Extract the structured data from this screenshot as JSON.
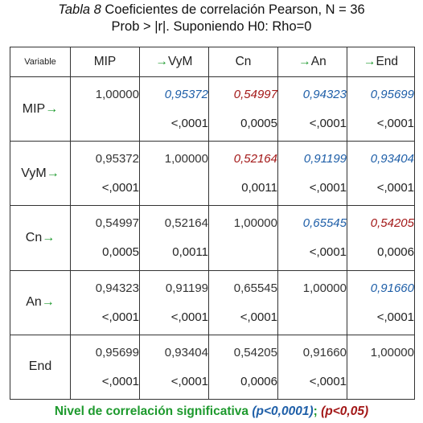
{
  "caption": {
    "table_word": "Tabla 8",
    "line1": "Coeficientes de correlación Pearson, N = 36",
    "line2": "Prob > |r|. Suponiendo H0: Rho=0"
  },
  "arrow": "→",
  "header": {
    "variable": "Variable",
    "cols": [
      {
        "label": "MIP",
        "arrow": false
      },
      {
        "label": "VyM",
        "arrow": true
      },
      {
        "label": "Cn",
        "arrow": false
      },
      {
        "label": "An",
        "arrow": true
      },
      {
        "label": "End",
        "arrow": true
      }
    ]
  },
  "rows": [
    {
      "label": "MIP",
      "arrow": true,
      "cells": [
        {
          "r": "1,00000",
          "p": "",
          "style": "norm"
        },
        {
          "r": "0,95372",
          "p": "<,0001",
          "style": "blue"
        },
        {
          "r": "0,54997",
          "p": "0,0005",
          "style": "red"
        },
        {
          "r": "0,94323",
          "p": "<,0001",
          "style": "blue"
        },
        {
          "r": "0,95699",
          "p": "<,0001",
          "style": "blue"
        }
      ]
    },
    {
      "label": "VyM",
      "arrow": true,
      "cells": [
        {
          "r": "0,95372",
          "p": "<,0001",
          "style": "norm"
        },
        {
          "r": "1,00000",
          "p": "",
          "style": "norm"
        },
        {
          "r": "0,52164",
          "p": "0,0011",
          "style": "red"
        },
        {
          "r": "0,91199",
          "p": "<,0001",
          "style": "blue"
        },
        {
          "r": "0,93404",
          "p": "<,0001",
          "style": "blue"
        }
      ]
    },
    {
      "label": "Cn",
      "arrow": true,
      "cells": [
        {
          "r": "0,54997",
          "p": "0,0005",
          "style": "norm"
        },
        {
          "r": "0,52164",
          "p": "0,0011",
          "style": "norm"
        },
        {
          "r": "1,00000",
          "p": "",
          "style": "norm"
        },
        {
          "r": "0,65545",
          "p": "<,0001",
          "style": "blue"
        },
        {
          "r": "0,54205",
          "p": "0,0006",
          "style": "red"
        }
      ]
    },
    {
      "label": "An",
      "arrow": true,
      "cells": [
        {
          "r": "0,94323",
          "p": "<,0001",
          "style": "norm"
        },
        {
          "r": "0,91199",
          "p": "<,0001",
          "style": "norm"
        },
        {
          "r": "0,65545",
          "p": "<,0001",
          "style": "norm"
        },
        {
          "r": "1,00000",
          "p": "",
          "style": "norm"
        },
        {
          "r": "0,91660",
          "p": "<,0001",
          "style": "blue"
        }
      ]
    },
    {
      "label": "End",
      "arrow": false,
      "cells": [
        {
          "r": "0,95699",
          "p": "<,0001",
          "style": "norm"
        },
        {
          "r": "0,93404",
          "p": "<,0001",
          "style": "norm"
        },
        {
          "r": "0,54205",
          "p": "0,0006",
          "style": "norm"
        },
        {
          "r": "0,91660",
          "p": "<,0001",
          "style": "norm"
        },
        {
          "r": "1,00000",
          "p": "",
          "style": "norm"
        }
      ]
    }
  ],
  "footer": {
    "text": "Nivel de correlación significativa",
    "blue_part": "(p<0,0001)",
    "separator": ";",
    "red_part": "(p<0,05)"
  },
  "colors": {
    "significant_high": "#1f5fa8",
    "significant_low": "#a31818",
    "arrow": "#1e9a2e"
  }
}
